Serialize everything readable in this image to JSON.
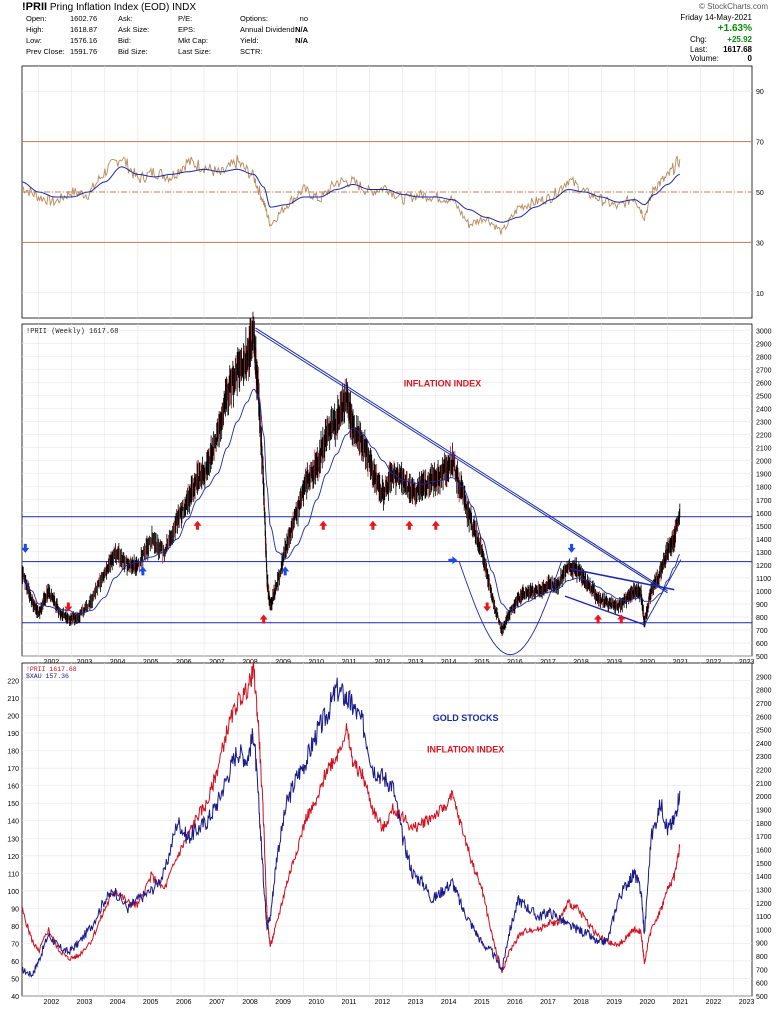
{
  "header": {
    "symbol": "!PRII",
    "name": "Pring Inflation Index (EOD)",
    "exchange": "INDX",
    "watermark": "© StockCharts.com",
    "date": "Friday 14-May-2021",
    "change_pct": "+1.63%",
    "change_label": "Chg:",
    "change_value": "+25.92",
    "last_label": "Last:",
    "last_value": "1617.68",
    "volume_label": "Volume:",
    "volume_value": "0",
    "quote_rows": [
      {
        "l1": "Open:",
        "v1": "1602.76",
        "l2": "Ask:",
        "v2": "",
        "l3": "P/E:",
        "v3": "",
        "l4": "Options:",
        "v4": "no"
      },
      {
        "l1": "High:",
        "v1": "1618.87",
        "l2": "Ask Size:",
        "v2": "",
        "l3": "EPS:",
        "v3": "",
        "l4": "Annual Dividend:",
        "v4": "N/A"
      },
      {
        "l1": "Low:",
        "v1": "1576.16",
        "l2": "Bid:",
        "v2": "",
        "l3": "Mkt Cap:",
        "v3": "",
        "l4": "Yield:",
        "v4": "N/A"
      },
      {
        "l1": "Prev Close:",
        "v1": "1591.76",
        "l2": "Bid Size:",
        "v2": "",
        "l3": "Last Size:",
        "v3": "",
        "l4": "SCTR:",
        "v4": ""
      }
    ]
  },
  "colors": {
    "price_line": "#b88a5a",
    "ma_line": "#1a2aa8",
    "rsi_levels": "#c57a5a",
    "bars": "#000000",
    "bars_down": "#e0202a",
    "trend": "#1a2aa8",
    "arrow_up": "#e8141e",
    "arrow_blue": "#1a4ae8",
    "gold": "#1a1a8a",
    "inflation": "#d01020",
    "label_red": "#e0141e",
    "label_blue": "#1a2aa8"
  },
  "chart_data": [
    {
      "type": "line",
      "panel": "momentum",
      "ylim": [
        0,
        100
      ],
      "yticks": [
        10,
        30,
        50,
        70,
        90
      ],
      "reference_lines": [
        70,
        50,
        30
      ],
      "x": [
        2001.5,
        2002.0,
        2002.5,
        2003.0,
        2003.5,
        2004.0,
        2004.5,
        2005.0,
        2005.5,
        2006.0,
        2006.5,
        2007.0,
        2007.5,
        2008.0,
        2008.5,
        2008.8,
        2009.0,
        2009.5,
        2010.0,
        2010.5,
        2011.0,
        2011.5,
        2012.0,
        2012.5,
        2013.0,
        2013.5,
        2014.0,
        2014.5,
        2015.0,
        2015.5,
        2016.0,
        2016.5,
        2017.0,
        2017.5,
        2018.0,
        2018.5,
        2019.0,
        2019.5,
        2020.0,
        2020.3,
        2020.6,
        2021.0,
        2021.37
      ],
      "series": [
        {
          "values": [
            52,
            48,
            46,
            50,
            49,
            58,
            64,
            55,
            58,
            56,
            62,
            60,
            57,
            62,
            56,
            46,
            37,
            45,
            51,
            47,
            54,
            54,
            50,
            52,
            47,
            49,
            48,
            47,
            37,
            40,
            34,
            44,
            46,
            48,
            55,
            50,
            47,
            44,
            48,
            40,
            52,
            56,
            63
          ]
        },
        {
          "values": [
            54,
            50,
            48,
            48,
            50,
            54,
            60,
            57,
            56,
            57,
            58,
            59,
            58,
            59,
            57,
            52,
            44,
            45,
            48,
            48,
            51,
            53,
            51,
            51,
            49,
            48,
            48,
            47,
            43,
            40,
            38,
            40,
            44,
            47,
            51,
            50,
            48,
            46,
            47,
            45,
            49,
            53,
            57
          ]
        }
      ]
    },
    {
      "type": "line",
      "panel": "price",
      "title": "!PRII (Weekly) 1617.68",
      "ylim": [
        500,
        3050
      ],
      "yticks": [
        500,
        600,
        700,
        800,
        900,
        1000,
        1100,
        1200,
        1300,
        1400,
        1500,
        1600,
        1700,
        1800,
        1900,
        2000,
        2100,
        2200,
        2300,
        2400,
        2500,
        2600,
        2700,
        2800,
        2900,
        3000
      ],
      "xticks": [
        2002,
        2003,
        2004,
        2005,
        2006,
        2007,
        2008,
        2009,
        2010,
        2011,
        2012,
        2013,
        2014,
        2015,
        2016,
        2017,
        2018,
        2019,
        2020,
        2021,
        2022,
        2023
      ],
      "horizontal_lines": [
        1570,
        1225,
        755
      ],
      "annotation": "INFLATION INDEX",
      "x": [
        2001.5,
        2001.8,
        2002.0,
        2002.3,
        2002.6,
        2002.9,
        2003.2,
        2003.6,
        2004.0,
        2004.3,
        2004.7,
        2005.0,
        2005.4,
        2005.8,
        2006.2,
        2006.5,
        2006.8,
        2007.1,
        2007.4,
        2007.7,
        2008.0,
        2008.3,
        2008.5,
        2008.65,
        2008.8,
        2008.9,
        2009.0,
        2009.2,
        2009.5,
        2009.8,
        2010.1,
        2010.4,
        2010.7,
        2011.0,
        2011.3,
        2011.5,
        2011.8,
        2012.1,
        2012.4,
        2012.7,
        2013.0,
        2013.3,
        2013.6,
        2013.9,
        2014.2,
        2014.5,
        2014.8,
        2015.1,
        2015.4,
        2015.7,
        2016.0,
        2016.2,
        2016.5,
        2016.8,
        2017.1,
        2017.4,
        2017.7,
        2018.0,
        2018.3,
        2018.6,
        2018.9,
        2019.2,
        2019.5,
        2019.8,
        2020.0,
        2020.2,
        2020.3,
        2020.5,
        2020.8,
        2021.0,
        2021.2,
        2021.37
      ],
      "series": [
        {
          "name": "!PRII",
          "values": [
            1150,
            920,
            830,
            1000,
            850,
            780,
            800,
            920,
            1150,
            1300,
            1200,
            1180,
            1400,
            1300,
            1550,
            1700,
            1850,
            1950,
            2200,
            2500,
            2700,
            2800,
            2950,
            2500,
            1800,
            1100,
            870,
            1050,
            1350,
            1600,
            1850,
            1950,
            2200,
            2300,
            2500,
            2250,
            2150,
            1900,
            1750,
            1900,
            1850,
            1750,
            1800,
            1850,
            1900,
            2000,
            1750,
            1500,
            1300,
            950,
            680,
            820,
            950,
            1000,
            1000,
            1050,
            1050,
            1200,
            1150,
            1050,
            950,
            900,
            880,
            950,
            1000,
            980,
            750,
            1000,
            1150,
            1300,
            1400,
            1617
          ]
        },
        {
          "name": "MA",
          "values": [
            1100,
            1000,
            900,
            880,
            860,
            850,
            820,
            850,
            950,
            1100,
            1200,
            1220,
            1260,
            1300,
            1400,
            1550,
            1700,
            1800,
            1900,
            2100,
            2300,
            2450,
            2550,
            2500,
            2200,
            1800,
            1500,
            1300,
            1250,
            1350,
            1500,
            1700,
            1900,
            2050,
            2200,
            2250,
            2200,
            2100,
            2000,
            1900,
            1850,
            1830,
            1820,
            1840,
            1850,
            1870,
            1800,
            1650,
            1400,
            1150,
            900,
            850,
            880,
            920,
            960,
            990,
            1020,
            1080,
            1100,
            1080,
            1030,
            980,
            940,
            920,
            940,
            950,
            920,
            920,
            980,
            1080,
            1180,
            1280
          ]
        }
      ]
    },
    {
      "type": "line",
      "panel": "comparison",
      "ylim_left": [
        40,
        230
      ],
      "yticks_left": [
        40,
        50,
        60,
        70,
        80,
        90,
        100,
        110,
        120,
        130,
        140,
        150,
        160,
        170,
        180,
        190,
        200,
        210,
        220
      ],
      "ylim_right": [
        500,
        3000
      ],
      "yticks_right": [
        500,
        600,
        700,
        800,
        900,
        1000,
        1100,
        1200,
        1300,
        1400,
        1500,
        1600,
        1700,
        1800,
        1900,
        2000,
        2100,
        2200,
        2300,
        2400,
        2500,
        2600,
        2700,
        2800,
        2900
      ],
      "xticks": [
        2002,
        2003,
        2004,
        2005,
        2006,
        2007,
        2008,
        2009,
        2010,
        2011,
        2012,
        2013,
        2014,
        2015,
        2016,
        2017,
        2018,
        2019,
        2020,
        2021,
        2022,
        2023
      ],
      "legend": [
        "!PRII 1617.68",
        "$XAU 157.36"
      ],
      "annotations": [
        "GOLD STOCKS",
        "INFLATION INDEX"
      ],
      "x": [
        2001.5,
        2001.8,
        2002.0,
        2002.3,
        2002.6,
        2002.9,
        2003.2,
        2003.6,
        2004.0,
        2004.3,
        2004.7,
        2005.0,
        2005.4,
        2005.8,
        2006.2,
        2006.5,
        2006.8,
        2007.1,
        2007.4,
        2007.7,
        2008.0,
        2008.3,
        2008.5,
        2008.65,
        2008.8,
        2008.9,
        2009.0,
        2009.2,
        2009.5,
        2009.8,
        2010.1,
        2010.4,
        2010.7,
        2011.0,
        2011.3,
        2011.5,
        2011.8,
        2012.1,
        2012.4,
        2012.7,
        2013.0,
        2013.3,
        2013.6,
        2013.9,
        2014.2,
        2014.5,
        2014.8,
        2015.1,
        2015.4,
        2015.7,
        2016.0,
        2016.2,
        2016.5,
        2016.8,
        2017.1,
        2017.4,
        2017.7,
        2018.0,
        2018.3,
        2018.6,
        2018.9,
        2019.2,
        2019.5,
        2019.8,
        2020.0,
        2020.2,
        2020.3,
        2020.5,
        2020.8,
        2021.0,
        2021.2,
        2021.37
      ],
      "series": [
        {
          "name": "$XAU",
          "axis": "left",
          "values": [
            55,
            52,
            60,
            75,
            68,
            65,
            70,
            80,
            95,
            100,
            90,
            95,
            100,
            110,
            140,
            130,
            135,
            140,
            150,
            165,
            180,
            175,
            190,
            150,
            105,
            80,
            85,
            120,
            150,
            165,
            175,
            190,
            200,
            215,
            210,
            205,
            195,
            170,
            165,
            160,
            130,
            110,
            105,
            95,
            100,
            105,
            90,
            80,
            70,
            65,
            55,
            75,
            95,
            90,
            85,
            88,
            85,
            80,
            78,
            75,
            70,
            72,
            95,
            105,
            110,
            100,
            75,
            130,
            150,
            135,
            140,
            157
          ]
        },
        {
          "name": "!PRII",
          "axis": "right",
          "values": [
            1150,
            920,
            830,
            1000,
            850,
            780,
            800,
            920,
            1150,
            1300,
            1200,
            1180,
            1400,
            1300,
            1550,
            1700,
            1850,
            1950,
            2200,
            2500,
            2700,
            2800,
            2950,
            2500,
            1800,
            1100,
            870,
            1050,
            1350,
            1600,
            1850,
            1950,
            2200,
            2300,
            2500,
            2250,
            2150,
            1900,
            1750,
            1900,
            1850,
            1750,
            1800,
            1850,
            1900,
            2000,
            1750,
            1500,
            1300,
            950,
            680,
            820,
            950,
            1000,
            1000,
            1050,
            1050,
            1200,
            1150,
            1050,
            950,
            900,
            880,
            950,
            1000,
            980,
            750,
            1000,
            1150,
            1300,
            1400,
            1617
          ]
        }
      ]
    }
  ]
}
